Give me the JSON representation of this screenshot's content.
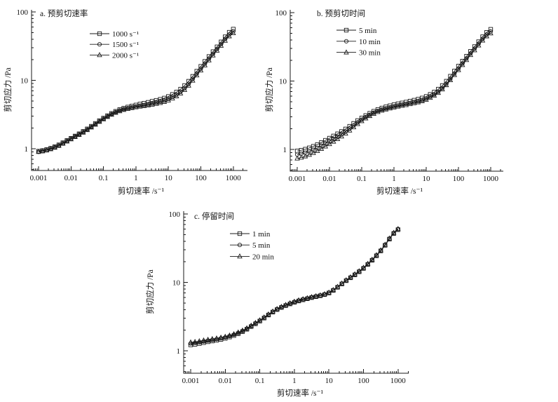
{
  "figure": {
    "background": "#ffffff",
    "axis_color": "#1a1a1a",
    "text_color": "#111111",
    "marker_fill": "none"
  },
  "chart_data": [
    {
      "id": "a",
      "type": "line",
      "title": "a. 预剪切速率",
      "xlabel": "剪切速率 /s⁻¹",
      "ylabel": "剪切应力 /Pa",
      "xscale": "log",
      "yscale": "log",
      "xlim": [
        0.0006,
        2500
      ],
      "ylim": [
        0.48,
        110
      ],
      "xticks": [
        0.001,
        0.01,
        0.1,
        1,
        10,
        100,
        1000
      ],
      "xtick_labels": [
        "0.001",
        "0.01",
        "0.1",
        "1",
        "10",
        "100",
        "1000"
      ],
      "yticks": [
        1,
        10,
        100
      ],
      "ytick_labels": [
        "1",
        "10",
        "100"
      ],
      "grid": false,
      "legend_position": "upper-left-inside",
      "markers_per_decade": 8,
      "x": [
        0.001,
        0.003,
        0.01,
        0.03,
        0.1,
        0.3,
        1,
        3,
        10,
        30,
        100,
        300,
        1000
      ],
      "series": [
        {
          "name": "1000 s⁻¹",
          "marker": "square",
          "values": [
            0.92,
            1.06,
            1.42,
            1.92,
            2.8,
            3.7,
            4.35,
            4.9,
            5.8,
            8.2,
            16.0,
            30.0,
            56
          ]
        },
        {
          "name": "1500 s⁻¹",
          "marker": "circle",
          "values": [
            0.9,
            1.04,
            1.4,
            1.88,
            2.74,
            3.6,
            4.15,
            4.55,
            5.35,
            7.5,
            14.8,
            28.0,
            52
          ]
        },
        {
          "name": "2000 s⁻¹",
          "marker": "triangle",
          "values": [
            0.9,
            1.03,
            1.38,
            1.85,
            2.7,
            3.52,
            4.05,
            4.4,
            5.1,
            7.1,
            14.0,
            26.5,
            49
          ]
        }
      ]
    },
    {
      "id": "b",
      "type": "line",
      "title": "b. 预剪切时间",
      "xlabel": "剪切速率 /s⁻¹",
      "ylabel": "剪切应力 /Pa",
      "xscale": "log",
      "yscale": "log",
      "xlim": [
        0.0006,
        2500
      ],
      "ylim": [
        0.48,
        110
      ],
      "xticks": [
        0.001,
        0.01,
        0.1,
        1,
        10,
        100,
        1000
      ],
      "xtick_labels": [
        "0.001",
        "0.01",
        "0.1",
        "1",
        "10",
        "100",
        "1000"
      ],
      "yticks": [
        1,
        10,
        100
      ],
      "ytick_labels": [
        "1",
        "10",
        "100"
      ],
      "grid": false,
      "legend_position": "upper-left-inside",
      "markers_per_decade": 8,
      "x": [
        0.001,
        0.003,
        0.01,
        0.03,
        0.1,
        0.3,
        1,
        3,
        10,
        30,
        100,
        300,
        1000
      ],
      "series": [
        {
          "name": "5 min",
          "marker": "square",
          "values": [
            0.95,
            1.1,
            1.46,
            1.96,
            2.88,
            3.8,
            4.5,
            5.05,
            5.95,
            8.4,
            16.5,
            31.0,
            57
          ]
        },
        {
          "name": "10 min",
          "marker": "circle",
          "values": [
            0.84,
            0.98,
            1.32,
            1.8,
            2.72,
            3.62,
            4.25,
            4.75,
            5.55,
            7.7,
            15.2,
            29.0,
            53
          ]
        },
        {
          "name": "30 min",
          "marker": "triangle",
          "values": [
            0.74,
            0.88,
            1.2,
            1.68,
            2.6,
            3.5,
            4.12,
            4.58,
            5.35,
            7.4,
            14.5,
            27.5,
            50
          ]
        }
      ]
    },
    {
      "id": "c",
      "type": "line",
      "title": "c. 停留时间",
      "xlabel": "剪切速率 /s⁻¹",
      "ylabel": "剪切应力 /Pa",
      "xscale": "log",
      "yscale": "log",
      "xlim": [
        0.0006,
        2100
      ],
      "ylim": [
        0.48,
        110
      ],
      "xticks": [
        0.001,
        0.01,
        0.1,
        1,
        10,
        100,
        1000
      ],
      "xtick_labels": [
        "0.001",
        "0.01",
        "0.1",
        "1",
        "10",
        "100",
        "1000"
      ],
      "yticks": [
        1,
        10,
        100
      ],
      "ytick_labels": [
        "1",
        "10",
        "100"
      ],
      "grid": false,
      "legend_position": "upper-left-inside",
      "markers_per_decade": 8,
      "x": [
        0.001,
        0.003,
        0.01,
        0.03,
        0.1,
        0.3,
        1,
        3,
        10,
        30,
        100,
        300,
        1000
      ],
      "series": [
        {
          "name": "1 min",
          "marker": "square",
          "values": [
            1.22,
            1.35,
            1.52,
            1.88,
            2.72,
            3.95,
            5.1,
            5.95,
            7.0,
            10.4,
            16.0,
            28.0,
            59.0
          ]
        },
        {
          "name": "5 min",
          "marker": "circle",
          "values": [
            1.28,
            1.4,
            1.57,
            1.92,
            2.76,
            4.0,
            5.18,
            6.02,
            7.06,
            10.5,
            16.2,
            28.4,
            60.0
          ]
        },
        {
          "name": "20 min",
          "marker": "triangle",
          "values": [
            1.33,
            1.45,
            1.61,
            1.96,
            2.8,
            4.04,
            5.24,
            6.08,
            7.12,
            10.6,
            16.4,
            28.7,
            60.5
          ]
        }
      ]
    }
  ]
}
